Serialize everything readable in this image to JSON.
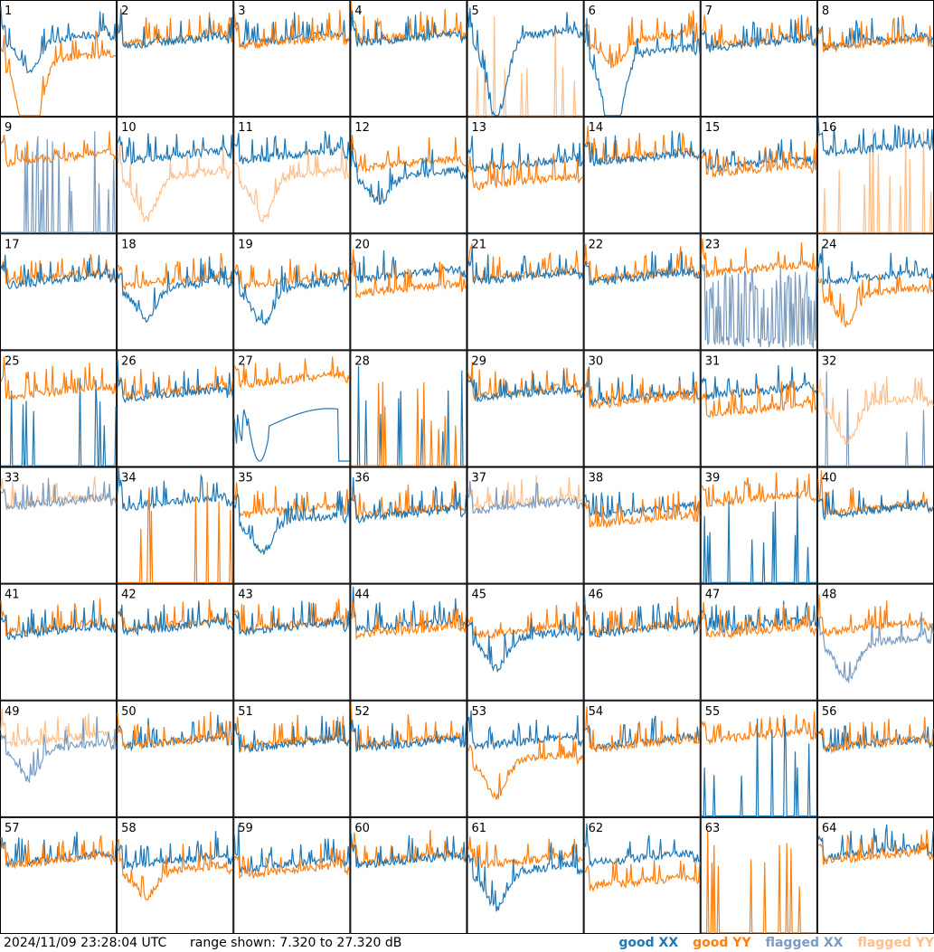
{
  "footer": {
    "timestamp": "2024/11/09 23:28:04 UTC",
    "range_text": "range shown: 7.320 to 27.320 dB"
  },
  "legend": [
    {
      "label": "good XX",
      "color": "#1f77b4"
    },
    {
      "label": "good YY",
      "color": "#ff7f0e"
    },
    {
      "label": "flagged XX",
      "color": "#7a9cc0"
    },
    {
      "label": "flagged YY",
      "color": "#ffbf8a"
    }
  ],
  "chart_data": {
    "type": "line",
    "grid_columns": 8,
    "grid_rows": 8,
    "ylim": [
      7.32,
      27.32
    ],
    "y_unit": "dB",
    "series_names": [
      "good XX",
      "good YY",
      "flagged XX",
      "flagged YY"
    ],
    "panels": [
      {
        "id": "1",
        "xx": "good",
        "yy": "good",
        "shape": "dip",
        "xx_level": 0.62,
        "yy_level": 0.45,
        "xx_dip": 0.25,
        "yy_dip": 0.85
      },
      {
        "id": "2",
        "xx": "good",
        "yy": "good",
        "shape": "normal",
        "xx_level": 0.6,
        "yy_level": 0.62
      },
      {
        "id": "3",
        "xx": "good",
        "yy": "good",
        "shape": "normal",
        "xx_level": 0.62,
        "yy_level": 0.6
      },
      {
        "id": "4",
        "xx": "good",
        "yy": "good",
        "shape": "normal",
        "xx_level": 0.62,
        "yy_level": 0.64
      },
      {
        "id": "5",
        "xx": "good",
        "yy": "flagged",
        "shape": "yy_spiky",
        "xx_level": 0.65,
        "xx_dip": 0.7
      },
      {
        "id": "6",
        "xx": "good",
        "yy": "good",
        "shape": "dip",
        "xx_level": 0.5,
        "yy_level": 0.62,
        "xx_dip": 0.7,
        "yy_dip": 0.2
      },
      {
        "id": "7",
        "xx": "good",
        "yy": "good",
        "shape": "normal",
        "xx_level": 0.58,
        "yy_level": 0.6
      },
      {
        "id": "8",
        "xx": "good",
        "yy": "good",
        "shape": "normal",
        "xx_level": 0.6,
        "yy_level": 0.58
      },
      {
        "id": "9",
        "xx": "flagged",
        "yy": "good",
        "shape": "xx_spiky",
        "yy_level": 0.6
      },
      {
        "id": "10",
        "xx": "good",
        "yy": "flagged",
        "shape": "dip",
        "xx_level": 0.62,
        "yy_level": 0.45,
        "yy_dip": 0.35
      },
      {
        "id": "11",
        "xx": "good",
        "yy": "flagged",
        "shape": "dip",
        "xx_level": 0.62,
        "yy_level": 0.45,
        "yy_dip": 0.35
      },
      {
        "id": "12",
        "xx": "good",
        "yy": "good",
        "shape": "dip",
        "xx_level": 0.45,
        "yy_level": 0.55,
        "xx_dip": 0.2
      },
      {
        "id": "13",
        "xx": "good",
        "yy": "good",
        "shape": "normal",
        "xx_level": 0.55,
        "yy_level": 0.4
      },
      {
        "id": "14",
        "xx": "good",
        "yy": "good",
        "shape": "normal",
        "xx_level": 0.6,
        "yy_level": 0.62
      },
      {
        "id": "15",
        "xx": "good",
        "yy": "good",
        "shape": "normal",
        "xx_level": 0.55,
        "yy_level": 0.5
      },
      {
        "id": "16",
        "xx": "good",
        "yy": "flagged",
        "shape": "yy_spiky",
        "xx_level": 0.68
      },
      {
        "id": "17",
        "xx": "good",
        "yy": "good",
        "shape": "normal",
        "xx_level": 0.55,
        "yy_level": 0.58
      },
      {
        "id": "18",
        "xx": "good",
        "yy": "good",
        "shape": "dip",
        "xx_level": 0.5,
        "yy_level": 0.55,
        "xx_dip": 0.25
      },
      {
        "id": "19",
        "xx": "good",
        "yy": "good",
        "shape": "dip",
        "xx_level": 0.5,
        "yy_level": 0.55,
        "xx_dip": 0.3
      },
      {
        "id": "20",
        "xx": "good",
        "yy": "good",
        "shape": "normal",
        "xx_level": 0.6,
        "yy_level": 0.48
      },
      {
        "id": "21",
        "xx": "good",
        "yy": "good",
        "shape": "normal",
        "xx_level": 0.58,
        "yy_level": 0.6
      },
      {
        "id": "22",
        "xx": "good",
        "yy": "good",
        "shape": "normal",
        "xx_level": 0.58,
        "yy_level": 0.6
      },
      {
        "id": "23",
        "xx": "flagged",
        "yy": "good",
        "shape": "xx_noisy",
        "yy_level": 0.65
      },
      {
        "id": "24",
        "xx": "good",
        "yy": "good",
        "shape": "dip",
        "xx_level": 0.58,
        "yy_level": 0.45,
        "yy_dip": 0.25
      },
      {
        "id": "25",
        "xx": "good",
        "yy": "good",
        "shape": "xx_spiky_low",
        "yy_level": 0.6
      },
      {
        "id": "26",
        "xx": "good",
        "yy": "good",
        "shape": "normal",
        "xx_level": 0.58,
        "yy_level": 0.6
      },
      {
        "id": "27",
        "xx": "good",
        "yy": "good",
        "shape": "xx_wave",
        "yy_level": 0.7
      },
      {
        "id": "28",
        "xx": "good",
        "yy": "good",
        "shape": "both_spiky"
      },
      {
        "id": "29",
        "xx": "good",
        "yy": "good",
        "shape": "normal",
        "xx_level": 0.58,
        "yy_level": 0.6
      },
      {
        "id": "30",
        "xx": "good",
        "yy": "good",
        "shape": "normal",
        "xx_level": 0.55,
        "yy_level": 0.52
      },
      {
        "id": "31",
        "xx": "good",
        "yy": "good",
        "shape": "normal",
        "xx_level": 0.6,
        "yy_level": 0.45
      },
      {
        "id": "32",
        "xx": "flagged",
        "yy": "flagged",
        "shape": "xx_spiky_low",
        "yy_level": 0.5,
        "yy_dip": 0.3
      },
      {
        "id": "33",
        "xx": "flagged",
        "yy": "flagged",
        "shape": "normal",
        "xx_level": 0.65,
        "yy_level": 0.66
      },
      {
        "id": "34",
        "xx": "good",
        "yy": "good",
        "shape": "yy_spiky_good",
        "xx_level": 0.65
      },
      {
        "id": "35",
        "xx": "good",
        "yy": "good",
        "shape": "dip",
        "xx_level": 0.5,
        "yy_level": 0.58,
        "xx_dip": 0.25
      },
      {
        "id": "36",
        "xx": "good",
        "yy": "good",
        "shape": "normal",
        "xx_level": 0.55,
        "yy_level": 0.58
      },
      {
        "id": "37",
        "xx": "flagged",
        "yy": "flagged",
        "shape": "normal",
        "xx_level": 0.62,
        "yy_level": 0.65
      },
      {
        "id": "38",
        "xx": "good",
        "yy": "good",
        "shape": "normal",
        "xx_level": 0.58,
        "yy_level": 0.5
      },
      {
        "id": "39",
        "xx": "good",
        "yy": "good",
        "shape": "xx_spiky_good",
        "yy_level": 0.68
      },
      {
        "id": "40",
        "xx": "good",
        "yy": "good",
        "shape": "normal",
        "xx_level": 0.58,
        "yy_level": 0.6
      },
      {
        "id": "41",
        "xx": "good",
        "yy": "good",
        "shape": "normal",
        "xx_level": 0.55,
        "yy_level": 0.58
      },
      {
        "id": "42",
        "xx": "good",
        "yy": "good",
        "shape": "normal",
        "xx_level": 0.58,
        "yy_level": 0.6
      },
      {
        "id": "43",
        "xx": "good",
        "yy": "good",
        "shape": "normal",
        "xx_level": 0.58,
        "yy_level": 0.6
      },
      {
        "id": "44",
        "xx": "good",
        "yy": "good",
        "shape": "normal",
        "xx_level": 0.6,
        "yy_level": 0.55
      },
      {
        "id": "45",
        "xx": "good",
        "yy": "good",
        "shape": "dip",
        "xx_level": 0.5,
        "yy_level": 0.55,
        "xx_dip": 0.25
      },
      {
        "id": "46",
        "xx": "good",
        "yy": "good",
        "shape": "normal",
        "xx_level": 0.56,
        "yy_level": 0.58
      },
      {
        "id": "47",
        "xx": "good",
        "yy": "good",
        "shape": "normal",
        "xx_level": 0.6,
        "yy_level": 0.55
      },
      {
        "id": "48",
        "xx": "flagged",
        "yy": "good",
        "shape": "dip",
        "xx_level": 0.45,
        "yy_level": 0.58,
        "xx_dip": 0.3
      },
      {
        "id": "49",
        "xx": "flagged",
        "yy": "flagged",
        "shape": "dip",
        "xx_level": 0.55,
        "yy_level": 0.62,
        "xx_dip": 0.25
      },
      {
        "id": "50",
        "xx": "good",
        "yy": "good",
        "shape": "normal",
        "xx_level": 0.6,
        "yy_level": 0.6
      },
      {
        "id": "51",
        "xx": "good",
        "yy": "good",
        "shape": "normal",
        "xx_level": 0.58,
        "yy_level": 0.6
      },
      {
        "id": "52",
        "xx": "good",
        "yy": "good",
        "shape": "normal",
        "xx_level": 0.58,
        "yy_level": 0.6
      },
      {
        "id": "53",
        "xx": "good",
        "yy": "good",
        "shape": "dip",
        "xx_level": 0.6,
        "yy_level": 0.45,
        "yy_dip": 0.3
      },
      {
        "id": "54",
        "xx": "good",
        "yy": "good",
        "shape": "normal",
        "xx_level": 0.6,
        "yy_level": 0.58
      },
      {
        "id": "55",
        "xx": "good",
        "yy": "good",
        "shape": "xx_spiky_good",
        "yy_level": 0.65
      },
      {
        "id": "56",
        "xx": "good",
        "yy": "good",
        "shape": "normal",
        "xx_level": 0.58,
        "yy_level": 0.58
      },
      {
        "id": "57",
        "xx": "good",
        "yy": "good",
        "shape": "normal",
        "xx_level": 0.6,
        "yy_level": 0.58
      },
      {
        "id": "58",
        "xx": "good",
        "yy": "good",
        "shape": "dip",
        "xx_level": 0.58,
        "yy_level": 0.5,
        "yy_dip": 0.2
      },
      {
        "id": "59",
        "xx": "good",
        "yy": "good",
        "shape": "normal",
        "xx_level": 0.55,
        "yy_level": 0.5
      },
      {
        "id": "60",
        "xx": "good",
        "yy": "good",
        "shape": "normal",
        "xx_level": 0.58,
        "yy_level": 0.6
      },
      {
        "id": "61",
        "xx": "good",
        "yy": "good",
        "shape": "dip",
        "xx_level": 0.5,
        "yy_level": 0.58,
        "xx_dip": 0.3
      },
      {
        "id": "62",
        "xx": "good",
        "yy": "good",
        "shape": "normal",
        "xx_level": 0.6,
        "yy_level": 0.4
      },
      {
        "id": "63",
        "xx": "good",
        "yy": "good",
        "shape": "yy_spiky_only"
      },
      {
        "id": "64",
        "xx": "good",
        "yy": "good",
        "shape": "normal",
        "xx_level": 0.65,
        "yy_level": 0.62
      }
    ]
  }
}
